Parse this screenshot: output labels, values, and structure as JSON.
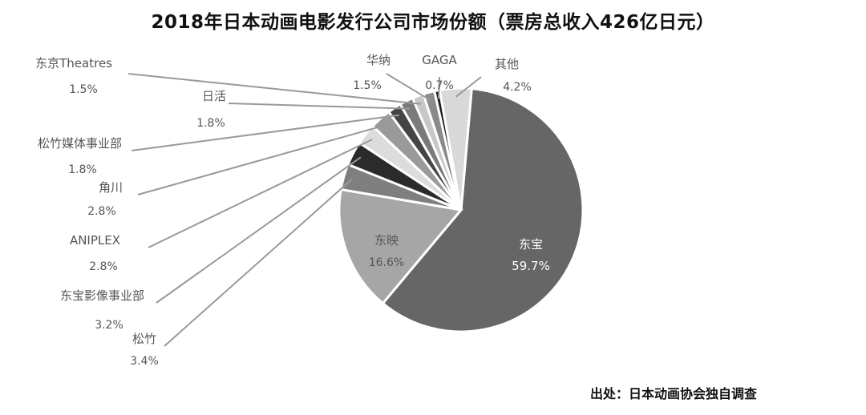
{
  "title": "2018年日本动画电影发行公司市场份额（票房总收入426亿日元）",
  "source": "出处：日本动画协会独自调查",
  "chart_data": {
    "type": "pie",
    "title": "2018年日本动画电影发行公司市场份额（票房总收入426亿日元）",
    "unit": "%",
    "slices": [
      {
        "label": "东宝",
        "value": 59.7,
        "display": "59.7%",
        "color": "#666666"
      },
      {
        "label": "东映",
        "value": 16.6,
        "display": "16.6%",
        "color": "#a6a6a6"
      },
      {
        "label": "松竹",
        "value": 3.4,
        "display": "3.4%",
        "color": "#7f7f7f"
      },
      {
        "label": "东宝影像事业部",
        "value": 3.2,
        "display": "3.2%",
        "color": "#2b2b2b"
      },
      {
        "label": "ANIPLEX",
        "value": 2.8,
        "display": "2.8%",
        "color": "#dcdcdc"
      },
      {
        "label": "角川",
        "value": 2.8,
        "display": "2.8%",
        "color": "#9a9a9a"
      },
      {
        "label": "松竹媒体事业部",
        "value": 1.8,
        "display": "1.8%",
        "color": "#454545"
      },
      {
        "label": "日活",
        "value": 1.8,
        "display": "1.8%",
        "color": "#7a7a7a"
      },
      {
        "label": "东京Theatres",
        "value": 1.5,
        "display": "1.5%",
        "color": "#c8c8c8"
      },
      {
        "label": "华纳",
        "value": 1.5,
        "display": "1.5%",
        "color": "#8a8a8a"
      },
      {
        "label": "GAGA",
        "value": 0.7,
        "display": "0.7%",
        "color": "#1e1e1e"
      },
      {
        "label": "其他",
        "value": 4.2,
        "display": "4.2%",
        "color": "#d9d9d9"
      }
    ]
  }
}
